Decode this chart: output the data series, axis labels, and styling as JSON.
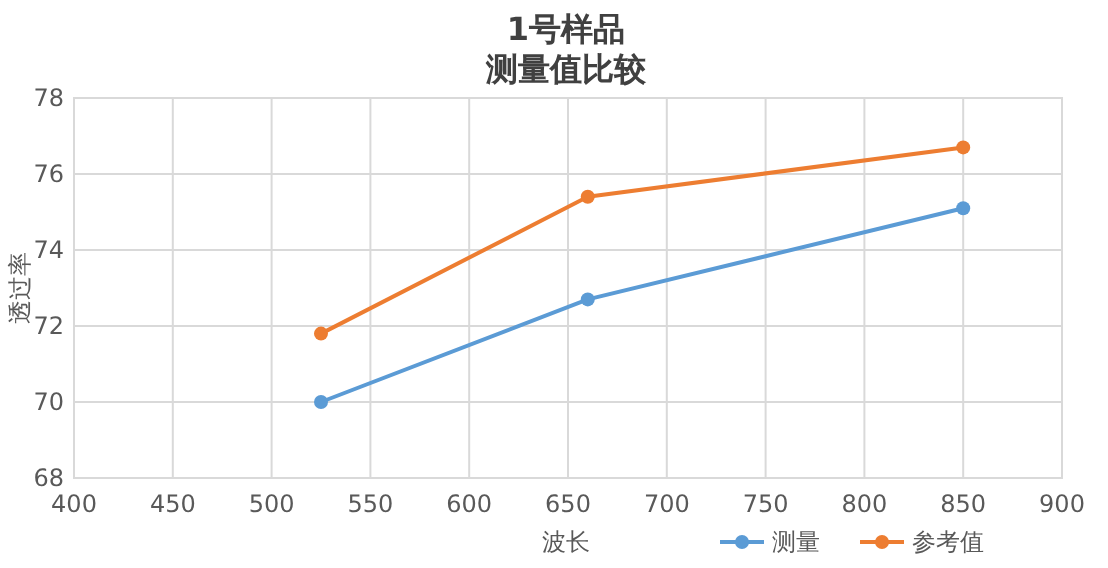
{
  "chart_data": {
    "type": "line",
    "title": "1号样品",
    "subtitle": "测量值比较",
    "xlabel": "波长",
    "ylabel": "透过率",
    "x": [
      525,
      660,
      850
    ],
    "series": [
      {
        "name": "测量",
        "color": "#5b9bd5",
        "values": [
          70.0,
          72.7,
          75.1
        ]
      },
      {
        "name": "参考值",
        "color": "#ed7d31",
        "values": [
          71.8,
          75.4,
          76.7
        ]
      }
    ],
    "xlim": [
      400,
      900
    ],
    "xticks": [
      400,
      450,
      500,
      550,
      600,
      650,
      700,
      750,
      800,
      850,
      900
    ],
    "ylim": [
      68,
      78
    ],
    "yticks": [
      68,
      70,
      72,
      74,
      76,
      78
    ],
    "grid": true,
    "legend": "bottom right",
    "marker": "circle",
    "line_style": "solid"
  }
}
